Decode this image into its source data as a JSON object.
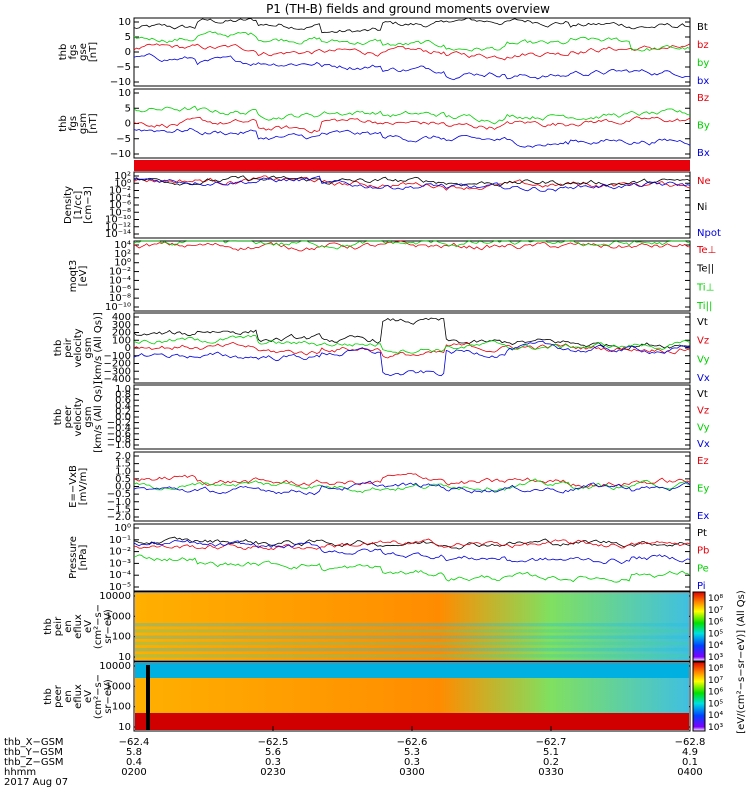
{
  "title": "P1 (TH-B) fields and ground moments overview",
  "colors": {
    "black": "#000000",
    "red": "#e8000b",
    "green": "#00d000",
    "blue": "#0000e0"
  },
  "panels": [
    {
      "ylabel": [
        "thb",
        "fgs",
        "gse",
        "[nT]"
      ],
      "yticks": [
        "10",
        "5",
        "0",
        "−5",
        "−10"
      ],
      "legend": [
        {
          "t": "Bt",
          "c": "black"
        },
        {
          "t": "bz",
          "c": "red"
        },
        {
          "t": "by",
          "c": "green"
        },
        {
          "t": "bx",
          "c": "blue"
        }
      ]
    },
    {
      "ylabel": [
        "thb",
        "fgs",
        "gsm",
        "[nT]"
      ],
      "yticks": [
        "10",
        "5",
        "0",
        "−5",
        "−10"
      ],
      "legend": [
        {
          "t": "Bz",
          "c": "red"
        },
        {
          "t": "By",
          "c": "green"
        },
        {
          "t": "Bx",
          "c": "blue"
        }
      ]
    },
    {
      "ylabel": [
        "Density",
        "[1/cc]",
        "[cm−3]"
      ],
      "yticks": [
        "10²",
        "10⁰",
        "10⁻²",
        "10⁻⁴",
        "10⁻⁶",
        "10⁻⁸",
        "10⁻¹⁰",
        "10⁻¹²",
        "10⁻¹⁴"
      ],
      "legend": [
        {
          "t": "Ne",
          "c": "red"
        },
        {
          "t": "Ni",
          "c": "black"
        },
        {
          "t": "Npot",
          "c": "blue"
        }
      ]
    },
    {
      "ylabel": [
        "moqt3",
        "[eV]"
      ],
      "yticks": [
        "10⁴",
        "10²",
        "10⁰",
        "10⁻²",
        "10⁻⁴",
        "10⁻⁶",
        "10⁻⁸",
        "10⁻¹⁰"
      ],
      "legend": [
        {
          "t": "Te⊥",
          "c": "red"
        },
        {
          "t": "Te||",
          "c": "black"
        },
        {
          "t": "Ti⊥",
          "c": "green"
        },
        {
          "t": "Ti||",
          "c": "green"
        }
      ]
    },
    {
      "ylabel": [
        "thb",
        "peir",
        "velocity",
        "gsm",
        "[km/s (All Qs)]"
      ],
      "yticks": [
        "400",
        "300",
        "200",
        "100",
        "0",
        "−100",
        "−200",
        "−300",
        "−400"
      ],
      "legend": [
        {
          "t": "Vt",
          "c": "black"
        },
        {
          "t": "Vz",
          "c": "red"
        },
        {
          "t": "Vy",
          "c": "green"
        },
        {
          "t": "Vx",
          "c": "blue"
        }
      ]
    },
    {
      "ylabel": [
        "thb",
        "peer",
        "velocity",
        "gsm",
        "[km/s (All Qs)]"
      ],
      "yticks": [
        "1.0",
        "0.8",
        "0.6",
        "0.4",
        "0.2",
        "0.0",
        "−0.2",
        "−0.4",
        "−0.6",
        "−0.8",
        "−1.0"
      ],
      "legend": [
        {
          "t": "Vt",
          "c": "black"
        },
        {
          "t": "Vz",
          "c": "red"
        },
        {
          "t": "Vy",
          "c": "green"
        },
        {
          "t": "Vx",
          "c": "blue"
        }
      ]
    },
    {
      "ylabel": [
        "E=−VxB",
        "[mV/m]"
      ],
      "yticks": [
        "2.0",
        "1.5",
        "1.0",
        "0.5",
        "0.0",
        "−0.5",
        "−1.0",
        "−1.5",
        "−2.0"
      ],
      "legend": [
        {
          "t": "Ez",
          "c": "red"
        },
        {
          "t": "Ey",
          "c": "green"
        },
        {
          "t": "Ex",
          "c": "blue"
        }
      ]
    },
    {
      "ylabel": [
        "Pressure",
        "[nPa]"
      ],
      "yticks": [
        "10⁰",
        "10⁻¹",
        "10⁻²",
        "10⁻³",
        "10⁻⁴",
        "10⁻⁵"
      ],
      "legend": [
        {
          "t": "Pt",
          "c": "black"
        },
        {
          "t": "Pb",
          "c": "red"
        },
        {
          "t": "Pe",
          "c": "green"
        },
        {
          "t": "Pi",
          "c": "blue"
        }
      ]
    },
    {
      "ylabel": [
        "thb",
        "peir",
        "en",
        "eflux",
        "eV",
        "(cm²−s−",
        "sr−eV)"
      ],
      "yticks": [
        "10000",
        "1000",
        "100",
        "10"
      ],
      "legend": []
    },
    {
      "ylabel": [
        "thb",
        "peer",
        "en",
        "eflux",
        "eV",
        "(cm²−s−",
        "sr−eV)"
      ],
      "yticks": [
        "10000",
        "1000",
        "100",
        "10"
      ],
      "legend": []
    }
  ],
  "colorbar": {
    "label": "[eV/(cm²−s−sr−eV)] (All Qs)",
    "ticks1": [
      "10⁸",
      "10⁷",
      "10⁶",
      "10⁵",
      "10⁴",
      "10³"
    ],
    "ticks2": [
      "10⁸",
      "10⁷",
      "10⁶",
      "10⁵",
      "10⁴",
      "10³"
    ]
  },
  "xaxis": {
    "rows": [
      {
        "name": "thb_X−GSM",
        "values": [
          "−62.4",
          "−62.5",
          "−62.6",
          "−62.7",
          "−62.8"
        ]
      },
      {
        "name": "thb_Y−GSM",
        "values": [
          "5.8",
          "5.6",
          "5.3",
          "5.1",
          "4.9"
        ]
      },
      {
        "name": "thb_Z−GSM",
        "values": [
          "0.4",
          "0.3",
          "0.3",
          "0.2",
          "0.1"
        ]
      },
      {
        "name": "hhmm",
        "values": [
          "0200",
          "0230",
          "0300",
          "0330",
          "0400"
        ]
      }
    ],
    "date": "2017 Aug 07"
  },
  "chart_data": {
    "type": "line",
    "title": "P1 (TH-B) fields and ground moments overview",
    "x_time_ticks": [
      "0200",
      "0230",
      "0300",
      "0330",
      "0400"
    ],
    "date": "2017 Aug 07",
    "stack": [
      {
        "panel": "fgs gse [nT]",
        "ylim": [
          -10,
          10
        ],
        "series": [
          {
            "name": "Bt",
            "values": [
              7,
              9,
              8,
              6,
              8,
              9,
              9,
              8,
              7.5
            ]
          },
          {
            "name": "bz",
            "values": [
              1,
              1,
              0,
              0,
              0,
              -1,
              0,
              1,
              1
            ]
          },
          {
            "name": "by",
            "values": [
              4,
              5,
              4,
              3,
              2,
              1,
              2,
              3,
              1
            ]
          },
          {
            "name": "bx",
            "values": [
              -2,
              -3,
              -3,
              -4,
              -5,
              -6,
              -7,
              -6,
              -6
            ]
          }
        ]
      },
      {
        "panel": "fgs gsm [nT]",
        "ylim": [
          -12,
          12
        ],
        "series": [
          {
            "name": "Bz",
            "values": [
              0,
              0,
              -2,
              1,
              0,
              -1,
              0,
              1,
              1
            ]
          },
          {
            "name": "By",
            "values": [
              5,
              4,
              3,
              4,
              3,
              2,
              3,
              3,
              3
            ]
          },
          {
            "name": "Bx",
            "values": [
              -2,
              -3,
              -5,
              -4,
              -5,
              -6,
              -7,
              -6,
              -6
            ]
          }
        ]
      },
      {
        "panel": "Density [1/cc]",
        "scale": "log",
        "series": [
          {
            "name": "Ne",
            "values": [
              1,
              1,
              1,
              0.1,
              0.1,
              0.05,
              0.05,
              0.1,
              0.1
            ]
          },
          {
            "name": "Ni",
            "values": [
              1,
              1,
              1,
              0.5,
              0.5,
              0.3,
              0.3,
              0.3,
              0.3
            ]
          },
          {
            "name": "Npot",
            "values": [
              1,
              1,
              1,
              0.05,
              0.05,
              0.01,
              0.01,
              0.05,
              0.05
            ]
          }
        ]
      },
      {
        "panel": "moqt3 [eV]",
        "scale": "log",
        "series": [
          {
            "name": "Te⊥",
            "values": [
              1000,
              1000,
              1000,
              1000,
              800,
              800,
              800,
              800,
              800
            ]
          },
          {
            "name": "Ti||",
            "values": [
              3000,
              3000,
              3000,
              3000,
              3000,
              3000,
              3000,
              3000,
              3000
            ]
          }
        ]
      },
      {
        "panel": "peir velocity gsm [km/s]",
        "ylim": [
          -400,
          400
        ],
        "series": [
          {
            "name": "Vt",
            "values": [
              150,
              200,
              100,
              80,
              300,
              50,
              60,
              40,
              50
            ]
          },
          {
            "name": "Vz",
            "values": [
              20,
              0,
              -50,
              0,
              -80,
              0,
              10,
              0,
              0
            ]
          },
          {
            "name": "Vy",
            "values": [
              80,
              100,
              50,
              50,
              0,
              20,
              10,
              20,
              30
            ]
          },
          {
            "name": "Vx",
            "values": [
              -80,
              -100,
              -100,
              -50,
              -300,
              -50,
              0,
              -20,
              -20
            ]
          }
        ]
      },
      {
        "panel": "E=-VxB [mV/m]",
        "ylim": [
          -2,
          2
        ],
        "series": [
          {
            "name": "Ez",
            "values": [
              0.5,
              0.3,
              0.2,
              0.2,
              0.5,
              0.2,
              0.3,
              0.2,
              0.3
            ]
          },
          {
            "name": "Ey",
            "values": [
              0,
              0.2,
              0.1,
              0,
              0,
              0.1,
              0.1,
              0,
              0.1
            ]
          },
          {
            "name": "Ex",
            "values": [
              -0.2,
              -0.3,
              -0.2,
              0,
              0,
              -0.1,
              -0.1,
              0,
              -0.1
            ]
          }
        ]
      },
      {
        "panel": "Pressure [nPa]",
        "scale": "log",
        "series": [
          {
            "name": "Pt",
            "values": [
              0.05,
              0.05,
              0.04,
              0.04,
              0.04,
              0.04,
              0.04,
              0.04,
              0.04
            ]
          },
          {
            "name": "Pb",
            "values": [
              0.02,
              0.02,
              0.02,
              0.03,
              0.03,
              0.03,
              0.03,
              0.03,
              0.03
            ]
          },
          {
            "name": "Pe",
            "values": [
              0.003,
              0.001,
              0.001,
              0.0005,
              0.0002,
              0.0001,
              0.0001,
              0.0001,
              0.0002
            ]
          },
          {
            "name": "Pi",
            "values": [
              0.03,
              0.02,
              0.02,
              0.01,
              0.005,
              0.003,
              0.002,
              0.002,
              0.003
            ]
          }
        ]
      }
    ]
  }
}
